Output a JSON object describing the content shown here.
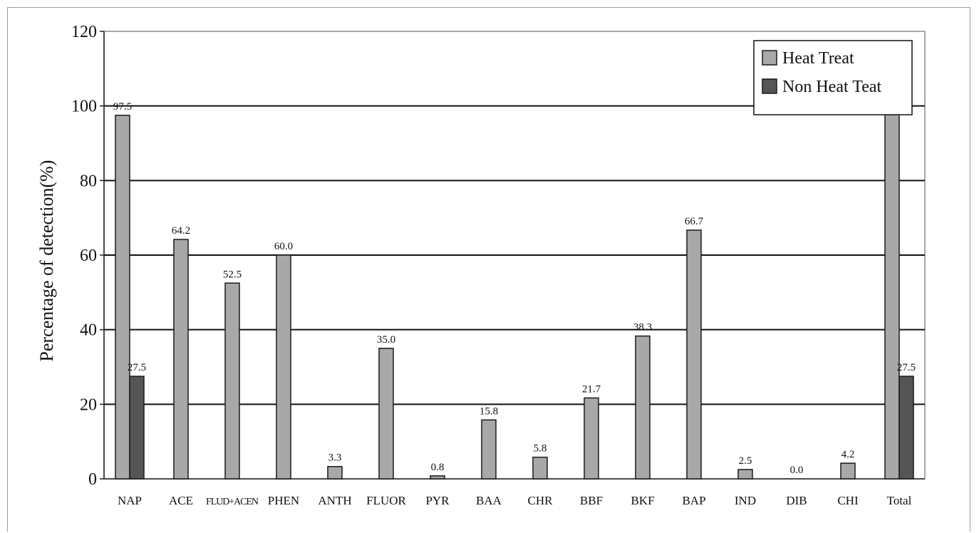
{
  "chart_data": {
    "type": "bar",
    "title": "",
    "xlabel": "",
    "ylabel": "Percentage of detection(%)",
    "ylim": [
      0,
      120
    ],
    "yticks": [
      0,
      20,
      40,
      60,
      80,
      100,
      120
    ],
    "grid": "horizontal",
    "legend_position": "top-right",
    "categories": [
      "NAP",
      "ACE",
      "FLUD+ACEN",
      "PHEN",
      "ANTH",
      "FLUOR",
      "PYR",
      "BAA",
      "CHR",
      "BBF",
      "BKF",
      "BAP",
      "IND",
      "DIB",
      "CHI",
      "Total"
    ],
    "series": [
      {
        "name": "Heat Treat",
        "color": "#a8a8a8",
        "values": [
          97.5,
          64.2,
          52.5,
          60.0,
          3.3,
          35.0,
          0.8,
          15.8,
          5.8,
          21.7,
          38.3,
          66.7,
          2.5,
          0.0,
          4.2,
          100.0
        ],
        "labels": [
          "97.5",
          "64.2",
          "52.5",
          "60.0",
          "3.3",
          "35.0",
          "0.8",
          "15.8",
          "5.8",
          "21.7",
          "38.3",
          "66.7",
          "2.5",
          "0.0",
          "4.2",
          "100.0"
        ]
      },
      {
        "name": "Non Heat Teat",
        "color": "#555555",
        "values": [
          27.5,
          null,
          null,
          null,
          null,
          null,
          null,
          null,
          null,
          null,
          null,
          null,
          null,
          null,
          null,
          27.5
        ],
        "labels": [
          "27.5",
          "",
          "",
          "",
          "",
          "",
          "",
          "",
          "",
          "",
          "",
          "",
          "",
          "",
          "",
          "27.5"
        ]
      }
    ]
  }
}
